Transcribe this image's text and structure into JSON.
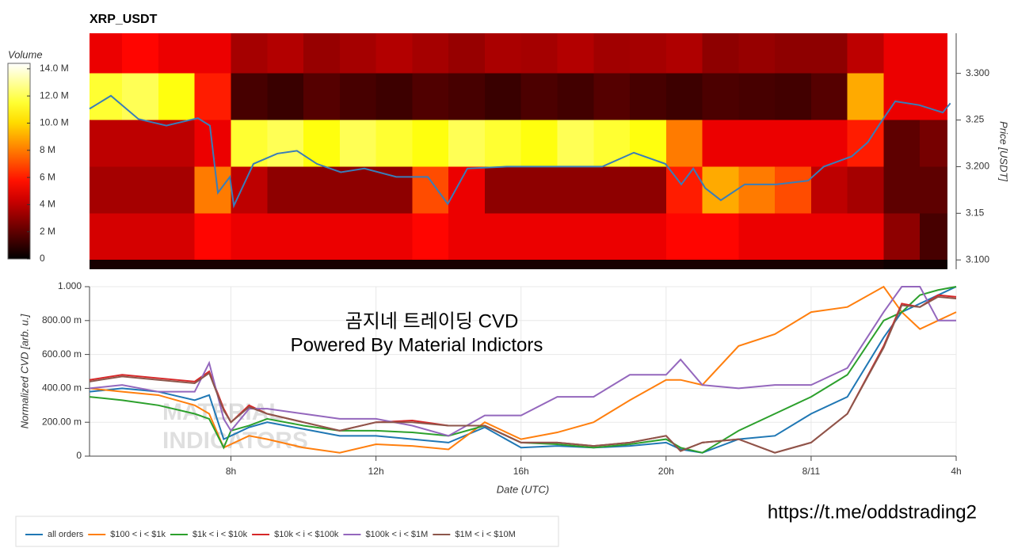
{
  "chart_data": [
    {
      "type": "heatmap",
      "title": "XRP_USDT",
      "x_bins": [
        4.1,
        5,
        6,
        7,
        8,
        9,
        10,
        11,
        12,
        13,
        14,
        15,
        16,
        17,
        18,
        19,
        20,
        21,
        22,
        23,
        24,
        25,
        26,
        27,
        27.75
      ],
      "y_bins": [
        3.09,
        3.1,
        3.15,
        3.2,
        3.25,
        3.3,
        3.343
      ],
      "z": [
        [
          500000,
          500000,
          500000,
          500000,
          500000,
          500000,
          500000,
          500000,
          500000,
          500000,
          500000,
          500000,
          500000,
          500000,
          500000,
          500000,
          500000,
          500000,
          500000,
          500000,
          500000,
          500000,
          300000,
          300000
        ],
        [
          4500000,
          4500000,
          4500000,
          5500000,
          5000000,
          5000000,
          5000000,
          5000000,
          5000000,
          5500000,
          5000000,
          5000000,
          5000000,
          5000000,
          5000000,
          5000000,
          5500000,
          5500000,
          5000000,
          5000000,
          5000000,
          5000000,
          3000000,
          1500000
        ],
        [
          3500000,
          3500000,
          3500000,
          8000000,
          4000000,
          3000000,
          3000000,
          3000000,
          3000000,
          7000000,
          5000000,
          3000000,
          3000000,
          3000000,
          3000000,
          3000000,
          6000000,
          9000000,
          8000000,
          7000000,
          4000000,
          3500000,
          2000000,
          2000000
        ],
        [
          4000000,
          4000000,
          4000000,
          5000000,
          11500000,
          12000000,
          11000000,
          12000000,
          11500000,
          11000000,
          12000000,
          11500000,
          11000000,
          12000000,
          11500000,
          11000000,
          8000000,
          5000000,
          5000000,
          5000000,
          5000000,
          6000000,
          2000000,
          2500000
        ],
        [
          11500000,
          12000000,
          11000000,
          6000000,
          1500000,
          1200000,
          1800000,
          1500000,
          1300000,
          1700000,
          1500000,
          1200000,
          1600000,
          1400000,
          1800000,
          1500000,
          1300000,
          1600000,
          1500000,
          1400000,
          1800000,
          9000000,
          5000000,
          5000000
        ],
        [
          5000000,
          5500000,
          5000000,
          5000000,
          3500000,
          3800000,
          3200000,
          3500000,
          3800000,
          3500000,
          3200000,
          3600000,
          3500000,
          3800000,
          3400000,
          3500000,
          3700000,
          3000000,
          3200000,
          3000000,
          3000000,
          4000000,
          5000000,
          5000000
        ]
      ],
      "colormap": "hot",
      "colorbar_label": "Volume",
      "clim": [
        0,
        14400000
      ],
      "cticks": [
        0,
        {
          "value": 2000000,
          "label": "2 M"
        },
        {
          "value": 4000000,
          "label": "4 M"
        },
        {
          "value": 6000000,
          "label": "6 M"
        },
        {
          "value": 8000000,
          "label": "8 M"
        },
        {
          "value": 10000000,
          "label": "10.0 M"
        },
        {
          "value": 12000000,
          "label": "12.0 M"
        },
        {
          "value": 14000000,
          "label": "14.0 M"
        }
      ],
      "price": {
        "color": "#3a7db8",
        "x": [
          4.1,
          4.69,
          5.45,
          6.22,
          7.09,
          7.42,
          7.64,
          7.97,
          8.08,
          8.62,
          9.28,
          9.82,
          10.37,
          11.03,
          11.68,
          12.56,
          13.43,
          13.98,
          14.52,
          15.61,
          16.93,
          18.24,
          19.11,
          19.98,
          20.42,
          20.75,
          21.08,
          21.51,
          22.17,
          23.04,
          23.92,
          24.35,
          25.12,
          25.56,
          25.88,
          26.32,
          26.98,
          27.63,
          27.84
        ],
        "y": [
          3.262,
          3.276,
          3.251,
          3.244,
          3.252,
          3.244,
          3.172,
          3.189,
          3.158,
          3.203,
          3.214,
          3.217,
          3.203,
          3.194,
          3.198,
          3.189,
          3.189,
          3.16,
          3.198,
          3.2,
          3.2,
          3.2,
          3.215,
          3.203,
          3.181,
          3.198,
          3.177,
          3.164,
          3.181,
          3.181,
          3.185,
          3.2,
          3.211,
          3.226,
          3.245,
          3.27,
          3.266,
          3.258,
          3.268
        ]
      },
      "xlim": [
        4.1,
        28
      ],
      "ylim": [
        3.09,
        3.343
      ],
      "yticks": [
        {
          "value": 3.1,
          "label": "3.100"
        },
        3.15,
        {
          "value": 3.2,
          "label": "3.200"
        },
        3.25,
        {
          "value": 3.3,
          "label": "3.300"
        }
      ],
      "y_label": "Price [USDT]"
    },
    {
      "type": "line",
      "x": [
        4.1,
        5,
        6,
        7,
        7.4,
        7.8,
        8,
        8.5,
        9,
        10,
        11,
        12,
        13,
        14,
        15,
        16,
        17,
        18,
        19,
        20,
        20.4,
        21,
        22,
        23,
        24,
        25,
        26,
        26.5,
        27,
        27.5,
        28
      ],
      "series": [
        {
          "name": "all orders",
          "color": "#1f77b4",
          "values": [
            0.38,
            0.4,
            0.38,
            0.33,
            0.36,
            0.1,
            0.12,
            0.17,
            0.2,
            0.16,
            0.12,
            0.12,
            0.1,
            0.08,
            0.17,
            0.05,
            0.06,
            0.05,
            0.06,
            0.08,
            0.04,
            0.02,
            0.1,
            0.12,
            0.25,
            0.35,
            0.7,
            0.85,
            0.9,
            0.95,
            1
          ]
        },
        {
          "name": "$100 < i < $1k",
          "color": "#ff7f0e",
          "values": [
            0.4,
            0.38,
            0.36,
            0.3,
            0.25,
            0.05,
            0.07,
            0.12,
            0.1,
            0.05,
            0.02,
            0.07,
            0.06,
            0.04,
            0.2,
            0.1,
            0.14,
            0.2,
            0.33,
            0.45,
            0.45,
            0.42,
            0.65,
            0.72,
            0.85,
            0.88,
            1,
            0.85,
            0.75,
            0.8,
            0.85
          ]
        },
        {
          "name": "$1k < i < $10k",
          "color": "#2ca02c",
          "values": [
            0.35,
            0.33,
            0.3,
            0.25,
            0.22,
            0.05,
            0.15,
            0.18,
            0.22,
            0.18,
            0.15,
            0.15,
            0.14,
            0.12,
            0.18,
            0.08,
            0.07,
            0.05,
            0.07,
            0.1,
            0.05,
            0.02,
            0.15,
            0.25,
            0.35,
            0.48,
            0.8,
            0.85,
            0.95,
            0.98,
            1
          ]
        },
        {
          "name": "$10k < i < $100k",
          "color": "#d62728",
          "values": [
            0.45,
            0.48,
            0.46,
            0.44,
            0.5,
            0.28,
            0.2,
            0.3,
            0.25,
            0.2,
            0.15,
            0.2,
            0.21,
            0.18,
            0.18,
            0.08,
            0.08,
            0.06,
            0.08,
            0.12,
            0.03,
            0.08,
            0.1,
            0.02,
            0.08,
            0.25,
            0.65,
            0.9,
            0.88,
            0.95,
            0.94
          ]
        },
        {
          "name": "$100k < i < $1M",
          "color": "#9467bd",
          "values": [
            0.4,
            0.42,
            0.38,
            0.38,
            0.55,
            0.22,
            0.15,
            0.28,
            0.28,
            0.25,
            0.22,
            0.22,
            0.18,
            0.12,
            0.24,
            0.24,
            0.35,
            0.35,
            0.48,
            0.48,
            0.57,
            0.42,
            0.4,
            0.42,
            0.42,
            0.52,
            0.85,
            1,
            1,
            0.8,
            0.8
          ]
        },
        {
          "name": "$1M < i < $10M",
          "color": "#8c564b",
          "values": [
            0.44,
            0.47,
            0.45,
            0.43,
            0.49,
            0.27,
            0.2,
            0.29,
            0.25,
            0.2,
            0.15,
            0.2,
            0.2,
            0.18,
            0.18,
            0.08,
            0.08,
            0.06,
            0.08,
            0.12,
            0.03,
            0.08,
            0.1,
            0.02,
            0.08,
            0.25,
            0.64,
            0.89,
            0.88,
            0.94,
            0.93
          ]
        }
      ],
      "xlim": [
        4.1,
        28
      ],
      "xticks": [
        {
          "value": 8,
          "label": "8h"
        },
        {
          "value": 12,
          "label": "12h"
        },
        {
          "value": 16,
          "label": "16h"
        },
        {
          "value": 20,
          "label": "20h"
        },
        {
          "value": 24,
          "label": "8/11"
        },
        {
          "value": 28,
          "label": "4h"
        }
      ],
      "ylim": [
        0,
        1
      ],
      "yticks": [
        0,
        {
          "value": 0.2,
          "label": "200.00 m"
        },
        {
          "value": 0.4,
          "label": "400.00 m"
        },
        {
          "value": 0.6,
          "label": "600.00 m"
        },
        {
          "value": 0.8,
          "label": "800.00 m"
        },
        {
          "value": 1,
          "label": "1.000"
        }
      ],
      "x_label": "Date (UTC)",
      "y_label": "Normalized CVD [arb. u.]",
      "annotations": [
        "곰지네 트레이딩 CVD",
        "Powered By Material Indictors"
      ],
      "watermark": [
        "MATERIAL",
        "INDICATORS"
      ],
      "grid": true,
      "legend": "bottom-left"
    }
  ],
  "footer": "https://t.me/oddstrading2"
}
